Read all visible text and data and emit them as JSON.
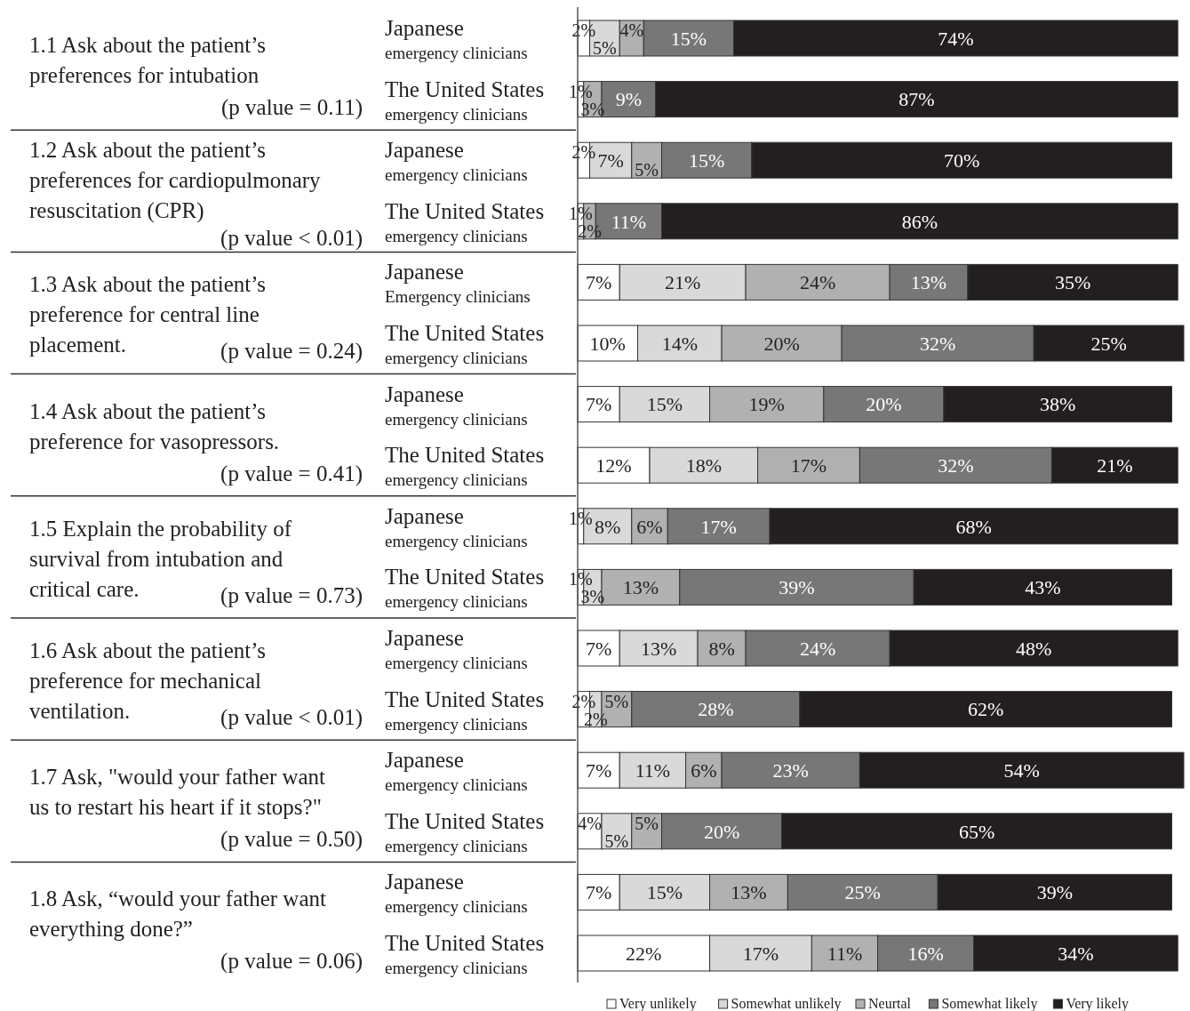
{
  "chart_data": {
    "type": "bar",
    "orientation": "horizontal",
    "stacked": true,
    "legend": "bottom",
    "tick_labels": "y",
    "categories": [
      "Japanese\nemergency clinicians",
      "The United States\nemergency clinicians",
      "Japanese\nemergency clinicians",
      "The United States\nemergency clinicians",
      "Japanese\nEmergency clinicians",
      "The United States\nemergency clinicians",
      "Japanese\nemergency clinicians",
      "The United States\nemergency clinicians",
      "Japanese\nemergency clinicians",
      "The United States\nemergency clinicians",
      "Japanese\nemergency clinicians",
      "The United States\nemergency clinicians",
      "Japanese\nemergency clinicians",
      "The United States\nemergency clinicians",
      "Japanese\nemergency clinicians",
      "The United States\nemergency clinicians"
    ],
    "series": [
      {
        "name": "Very unlikely",
        "color": "#ffffff",
        "values": [
          2,
          1,
          2,
          1,
          7,
          10,
          7,
          12,
          1,
          1,
          7,
          2,
          7,
          4,
          7,
          22
        ],
        "value_labels": [
          "2%",
          "1%",
          "2%",
          "1%",
          "7%",
          "10%",
          "7%",
          "12%",
          "1%",
          "1%",
          "7%",
          "2%",
          "7%",
          "4%",
          "7%",
          "22%"
        ]
      },
      {
        "name": "Somewhat unlikely",
        "color": "#d9d9d9",
        "values": [
          5,
          null,
          7,
          null,
          21,
          14,
          15,
          18,
          8,
          3,
          13,
          2,
          11,
          5,
          15,
          17
        ],
        "value_labels": [
          "5%",
          null,
          "7%",
          null,
          "21%",
          "14%",
          "15%",
          "18%",
          "8%",
          "3%",
          "13%",
          "2%",
          "11%",
          "5%",
          "15%",
          "17%"
        ]
      },
      {
        "name": "Neurtal",
        "color": "#b1b1b1",
        "values": [
          4,
          3,
          5,
          2,
          24,
          20,
          19,
          17,
          6,
          13,
          8,
          5,
          6,
          5,
          13,
          11
        ],
        "value_labels": [
          "4%",
          "3%",
          "5%",
          "2%",
          "24%",
          "20%",
          "19%",
          "17%",
          "6%",
          "13%",
          "8%",
          "5%",
          "6%",
          "5%",
          "13%",
          "11%"
        ]
      },
      {
        "name": "Somewhat likely",
        "color": "#777777",
        "values": [
          15,
          9,
          15,
          11,
          13,
          32,
          20,
          32,
          17,
          39,
          24,
          28,
          23,
          20,
          25,
          16
        ],
        "value_labels": [
          "15%",
          "9%",
          "15%",
          "11%",
          "13%",
          "32%",
          "20%",
          "32%",
          "17%",
          "39%",
          "24%",
          "28%",
          "23%",
          "20%",
          "25%",
          "16%"
        ]
      },
      {
        "name": "Very likely",
        "color": "#231f20",
        "values": [
          74,
          87,
          70,
          86,
          35,
          25,
          38,
          21,
          68,
          43,
          48,
          62,
          54,
          65,
          39,
          34
        ],
        "value_labels": [
          "74%",
          "87%",
          "70%",
          "86%",
          "35%",
          "25%",
          "38%",
          "21%",
          "68%",
          "43%",
          "48%",
          "62%",
          "54%",
          "65%",
          "39%",
          "34%"
        ]
      }
    ],
    "annotations": [
      "1.1 Ask about the patient’s\npreferences for intubation",
      "(p value = 0.11)",
      "1.2 Ask about the patient’s\npreferences for cardiopulmonary\nresuscitation (CPR)",
      "(p value < 0.01)",
      "1.3 Ask about the patient’s\npreference for central line\nplacement.",
      "(p value = 0.24)",
      "1.4 Ask about the patient’s\npreference for vasopressors.",
      "(p value = 0.41)",
      "1.5 Explain the probability of\nsurvival from intubation and\ncritical care.",
      "(p value = 0.73)",
      "1.6 Ask about the patient’s\npreference for mechanical\nventilation.",
      "(p value < 0.01)",
      "1.7 Ask, \"would your father want\nus to restart his heart if it stops?\"",
      "(p value = 0.50)",
      "1.8 Ask, “would your father want\neverything done?”",
      "(p value = 0.06)"
    ]
  }
}
